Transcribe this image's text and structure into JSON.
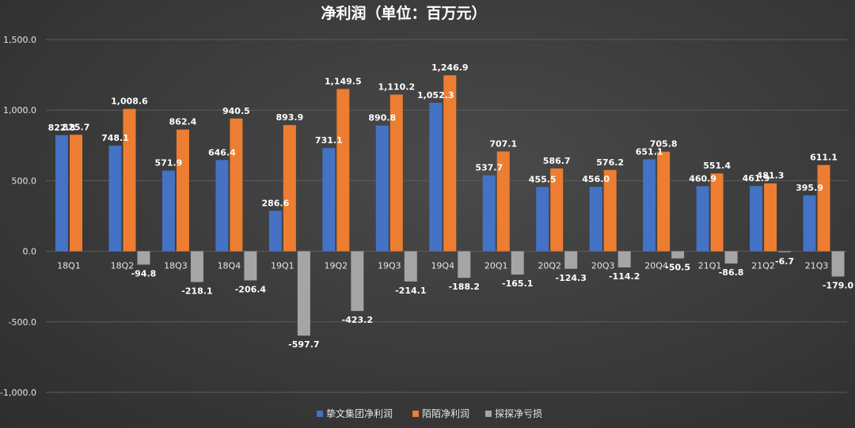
{
  "chart_data": {
    "type": "bar",
    "title": "净利润（单位：百万元）",
    "categories": [
      "18Q1",
      "18Q2",
      "18Q3",
      "18Q4",
      "19Q1",
      "19Q2",
      "19Q3",
      "19Q4",
      "20Q1",
      "20Q2",
      "20Q3",
      "20Q4",
      "21Q1",
      "21Q2",
      "21Q3"
    ],
    "series": [
      {
        "name": "挚文集团净利润",
        "color": "#4472c4",
        "values": [
          822.8,
          748.1,
          571.9,
          646.4,
          286.6,
          731.1,
          890.8,
          1052.3,
          537.7,
          455.5,
          456.0,
          651.1,
          460.9,
          461.9,
          395.9
        ],
        "labels": [
          "822.8",
          "748.1",
          "571.9",
          "646.4",
          "286.6",
          "731.1",
          "890.8",
          "1,052.3",
          "537.7",
          "455.5",
          "456.0",
          "651.1",
          "460.9",
          "461.9",
          "395.9"
        ]
      },
      {
        "name": "陌陌净利润",
        "color": "#ed7d31",
        "values": [
          825.7,
          1008.6,
          862.4,
          940.5,
          893.9,
          1149.5,
          1110.2,
          1246.9,
          707.1,
          586.7,
          576.2,
          705.8,
          551.4,
          481.3,
          611.1
        ],
        "labels": [
          "825.7",
          "1,008.6",
          "862.4",
          "940.5",
          "893.9",
          "1,149.5",
          "1,110.2",
          "1,246.9",
          "707.1",
          "586.7",
          "576.2",
          "705.8",
          "551.4",
          "481.3",
          "611.1"
        ]
      },
      {
        "name": "探探净亏损",
        "color": "#a5a5a5",
        "values": [
          0,
          -94.8,
          -218.1,
          -206.4,
          -597.7,
          -423.2,
          -214.1,
          -188.2,
          -165.1,
          -124.3,
          -114.2,
          -50.5,
          -86.8,
          -6.7,
          -179.0
        ],
        "labels": [
          "",
          "-94.8",
          "-218.1",
          "-206.4",
          "-597.7",
          "-423.2",
          "-214.1",
          "-188.2",
          "-165.1",
          "-124.3",
          "-114.2",
          "-50.5",
          "-86.8",
          "-6.7",
          "-179.0"
        ]
      }
    ],
    "ylim": [
      -1000,
      1500
    ],
    "yticks": [
      1500,
      1000,
      500,
      0,
      -500,
      -1000
    ],
    "ytick_labels": [
      "1,500.0",
      "1,000.0",
      "500.0",
      "0.0",
      "-500.0",
      "-1,000.0"
    ],
    "grid": true,
    "legend_position": "bottom"
  }
}
